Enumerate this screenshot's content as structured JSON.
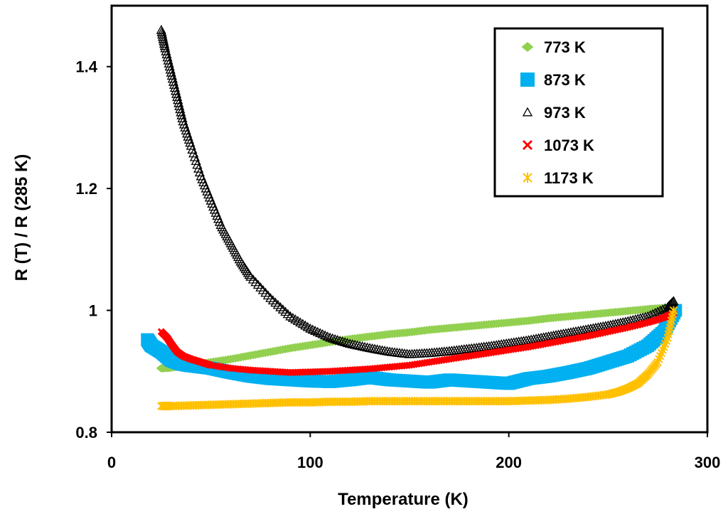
{
  "chart_data": {
    "type": "scatter",
    "title": "",
    "xlabel": "Temperature (K)",
    "ylabel": "R (T) / R (285 K)",
    "xlim": [
      0,
      300
    ],
    "ylim": [
      0.8,
      1.5
    ],
    "xticks": [
      0,
      100,
      200,
      300
    ],
    "xtick_labels": [
      "0",
      "100",
      "200",
      "300"
    ],
    "yticks": [
      0.8,
      1.0,
      1.2,
      1.4
    ],
    "ytick_labels": [
      "0.8",
      "1",
      "1.2",
      "1.4"
    ],
    "grid": false,
    "legend_position": "top-right",
    "series": [
      {
        "name": "773 K",
        "color": "#92d050",
        "marker": "diamond",
        "x": [
          25,
          30,
          40,
          50,
          60,
          70,
          80,
          90,
          100,
          110,
          120,
          130,
          140,
          150,
          160,
          170,
          180,
          190,
          200,
          210,
          220,
          230,
          240,
          250,
          260,
          270,
          278,
          283
        ],
        "y": [
          0.905,
          0.906,
          0.91,
          0.915,
          0.92,
          0.926,
          0.932,
          0.938,
          0.943,
          0.948,
          0.953,
          0.957,
          0.961,
          0.964,
          0.968,
          0.971,
          0.974,
          0.977,
          0.98,
          0.983,
          0.987,
          0.99,
          0.993,
          0.996,
          0.999,
          1.002,
          1.004,
          1.003
        ]
      },
      {
        "name": "873 K",
        "color": "#00b0f0",
        "marker": "square",
        "x": [
          18,
          20,
          25,
          30,
          35,
          40,
          50,
          60,
          70,
          80,
          90,
          100,
          110,
          120,
          130,
          140,
          150,
          160,
          170,
          180,
          190,
          200,
          210,
          220,
          230,
          240,
          250,
          260,
          270,
          278,
          284
        ],
        "y": [
          0.952,
          0.942,
          0.932,
          0.918,
          0.912,
          0.909,
          0.905,
          0.898,
          0.892,
          0.888,
          0.886,
          0.884,
          0.883,
          0.886,
          0.89,
          0.886,
          0.884,
          0.882,
          0.886,
          0.884,
          0.882,
          0.88,
          0.888,
          0.892,
          0.898,
          0.905,
          0.915,
          0.925,
          0.942,
          0.965,
          1.0
        ]
      },
      {
        "name": "973 K",
        "color": "#000000",
        "marker": "triangle",
        "x": [
          25,
          27,
          30,
          33,
          36,
          40,
          45,
          50,
          55,
          60,
          65,
          70,
          80,
          90,
          100,
          110,
          120,
          130,
          140,
          150,
          160,
          170,
          180,
          190,
          200,
          210,
          220,
          230,
          240,
          250,
          260,
          270,
          280,
          283
        ],
        "y": [
          1.46,
          1.43,
          1.39,
          1.35,
          1.31,
          1.27,
          1.22,
          1.18,
          1.14,
          1.11,
          1.08,
          1.055,
          1.02,
          0.99,
          0.97,
          0.955,
          0.945,
          0.938,
          0.932,
          0.928,
          0.93,
          0.933,
          0.937,
          0.941,
          0.946,
          0.951,
          0.957,
          0.963,
          0.969,
          0.975,
          0.982,
          0.99,
          1.005,
          1.015
        ]
      },
      {
        "name": "1073 K",
        "color": "#ff0000",
        "marker": "x",
        "x": [
          25,
          28,
          30,
          33,
          36,
          40,
          45,
          50,
          60,
          70,
          80,
          90,
          100,
          110,
          120,
          130,
          140,
          150,
          160,
          170,
          180,
          190,
          200,
          210,
          220,
          230,
          240,
          250,
          260,
          270,
          278,
          283
        ],
        "y": [
          0.965,
          0.955,
          0.945,
          0.932,
          0.925,
          0.92,
          0.915,
          0.91,
          0.905,
          0.902,
          0.9,
          0.898,
          0.899,
          0.9,
          0.902,
          0.904,
          0.907,
          0.91,
          0.915,
          0.92,
          0.925,
          0.93,
          0.935,
          0.94,
          0.946,
          0.952,
          0.958,
          0.965,
          0.972,
          0.98,
          0.988,
          0.995
        ]
      },
      {
        "name": "1173 K",
        "color": "#ffc000",
        "marker": "asterisk",
        "x": [
          25,
          30,
          40,
          50,
          60,
          70,
          80,
          90,
          100,
          110,
          120,
          130,
          140,
          150,
          160,
          170,
          180,
          190,
          200,
          210,
          220,
          230,
          240,
          250,
          255,
          260,
          265,
          270,
          275,
          280,
          283
        ],
        "y": [
          0.843,
          0.843,
          0.844,
          0.845,
          0.846,
          0.847,
          0.848,
          0.849,
          0.849,
          0.85,
          0.85,
          0.851,
          0.851,
          0.851,
          0.851,
          0.851,
          0.851,
          0.851,
          0.851,
          0.852,
          0.853,
          0.855,
          0.858,
          0.862,
          0.866,
          0.872,
          0.88,
          0.895,
          0.915,
          0.955,
          1.0
        ]
      }
    ]
  }
}
